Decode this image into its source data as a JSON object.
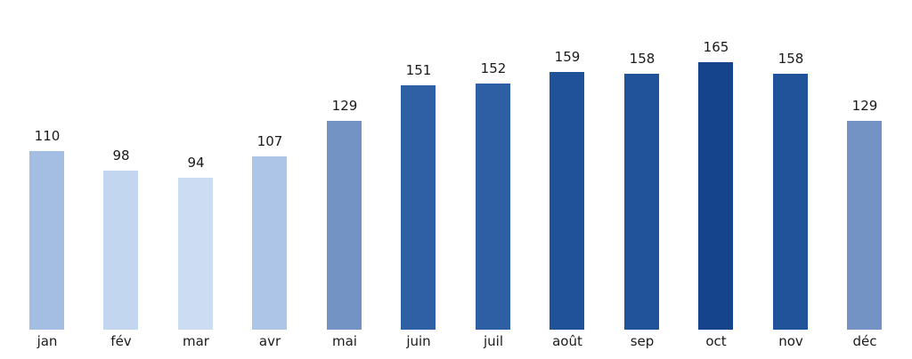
{
  "figure": {
    "background": "#ffffff",
    "label_color": "#1a1a1a"
  },
  "chart_data": {
    "type": "bar",
    "title": "",
    "xlabel": "",
    "ylabel": "",
    "categories": [
      "jan",
      "fév",
      "mar",
      "avr",
      "mai",
      "juin",
      "juil",
      "août",
      "sep",
      "oct",
      "nov",
      "déc"
    ],
    "values": [
      110,
      98,
      94,
      107,
      129,
      151,
      152,
      159,
      158,
      165,
      158,
      129
    ],
    "bar_colors": [
      "#a3bee2",
      "#c3d6f0",
      "#cbdcf3",
      "#adc5e7",
      "#7393c5",
      "#2f60a6",
      "#2e5fa4",
      "#1f5298",
      "#21539a",
      "#15448c",
      "#21539a",
      "#7393c5"
    ],
    "value_labels": [
      "110",
      "98",
      "94",
      "107",
      "129",
      "151",
      "152",
      "159",
      "158",
      "165",
      "158",
      "129"
    ],
    "value_labels_position": "above-bars",
    "ylim": [
      0,
      182
    ],
    "grid": false,
    "legend": false,
    "axes_visible": false,
    "color_encoding": "bar color darkness increases with value (light blue = low, dark navy blue = high)"
  }
}
